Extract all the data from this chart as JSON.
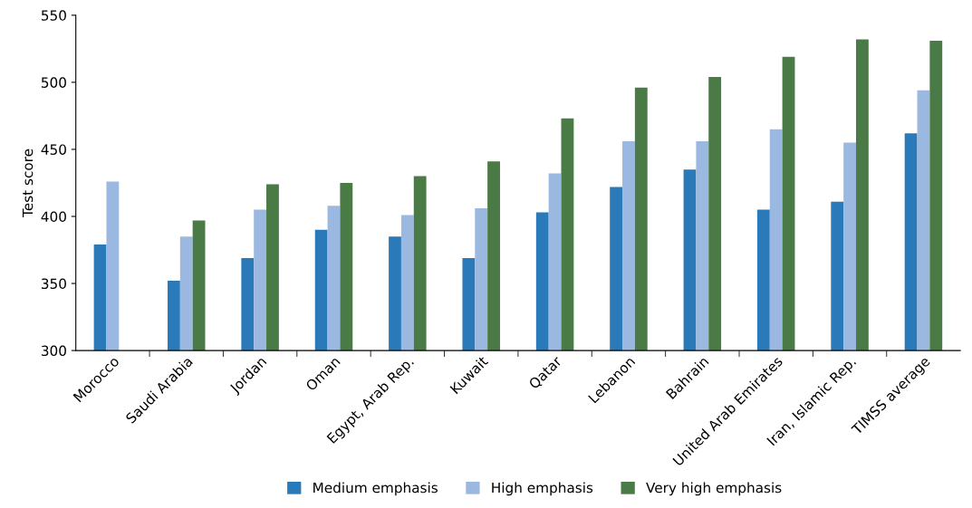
{
  "chart_data": {
    "type": "bar",
    "ylabel": "Test score",
    "categories": [
      "Morocco",
      "Saudi Arabia",
      "Jordan",
      "Oman",
      "Egypt, Arab Rep.",
      "Kuwait",
      "Qatar",
      "Lebanon",
      "Bahrain",
      "United Arab Emirates",
      "Iran, Islamic Rep.",
      "TIMSS average"
    ],
    "series": [
      {
        "name": "Medium emphasis",
        "color": "#2a7ab9",
        "values": [
          379,
          352,
          369,
          390,
          385,
          369,
          403,
          422,
          435,
          405,
          411,
          462
        ]
      },
      {
        "name": "High emphasis",
        "color": "#9bb8e0",
        "values": [
          426,
          385,
          405,
          408,
          401,
          406,
          432,
          456,
          456,
          465,
          455,
          494
        ]
      },
      {
        "name": "Very high emphasis",
        "color": "#4a7a45",
        "values": [
          null,
          397,
          424,
          425,
          430,
          441,
          473,
          496,
          504,
          519,
          532,
          531
        ]
      }
    ],
    "ylim": [
      300,
      550
    ],
    "yticks": [
      300,
      350,
      400,
      450,
      500,
      550
    ],
    "grid": false,
    "legend": "bottom"
  }
}
